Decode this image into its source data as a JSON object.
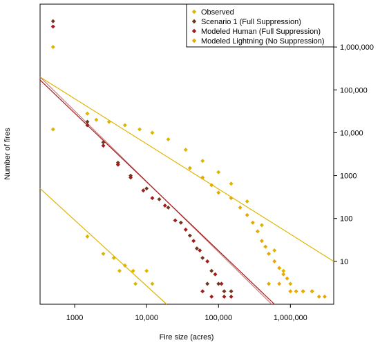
{
  "chart_data": {
    "type": "scatter",
    "title": "",
    "xlabel": "Fire size (acres)",
    "ylabel": "Number of fires",
    "x_scale": "log",
    "y_scale": "log",
    "xlim": [
      330,
      4000000
    ],
    "ylim": [
      1,
      10000000
    ],
    "x_ticks": [
      {
        "value": 1000,
        "label": "1000"
      },
      {
        "value": 10000,
        "label": "10,000"
      },
      {
        "value": 100000,
        "label": "100,000"
      },
      {
        "value": 1000000,
        "label": "1,000,000"
      }
    ],
    "y_ticks": [
      {
        "value": 10,
        "label": "10"
      },
      {
        "value": 100,
        "label": "100"
      },
      {
        "value": 1000,
        "label": "1000"
      },
      {
        "value": 10000,
        "label": "10,000"
      },
      {
        "value": 100000,
        "label": "100,000"
      },
      {
        "value": 1000000,
        "label": "1,000,000"
      }
    ],
    "y_axis_side": "right",
    "grid": false,
    "legend": {
      "placement": "top-right",
      "entries": [
        {
          "label": "Observed",
          "color": "#DAB600"
        },
        {
          "label": "Scenario 1 (Full Suppression)",
          "color": "#6B3A1E"
        },
        {
          "label": "Modeled Human (Full Suppression)",
          "color": "#A11C1C"
        },
        {
          "label": "Modeled Lightning (No Suppression)",
          "color": "#E8A800"
        }
      ]
    },
    "series": [
      {
        "name": "Observed",
        "color": "#DAB600",
        "kind": "points",
        "points": [
          [
            500,
            1000000
          ],
          [
            500,
            12000
          ],
          [
            1500,
            38
          ],
          [
            2500,
            15
          ],
          [
            3500,
            12
          ],
          [
            5000,
            8
          ],
          [
            6500,
            6
          ],
          [
            4200,
            6
          ],
          [
            7000,
            3
          ],
          [
            12000,
            3
          ],
          [
            10000,
            6
          ],
          [
            1500,
            28000
          ],
          [
            2000,
            20000
          ],
          [
            3000,
            18000
          ],
          [
            5000,
            15000
          ],
          [
            8000,
            12000
          ],
          [
            12000,
            10000
          ],
          [
            20000,
            7000
          ],
          [
            35000,
            4000
          ],
          [
            60000,
            2200
          ],
          [
            100000,
            1200
          ],
          [
            150000,
            650
          ],
          [
            250000,
            250
          ],
          [
            400000,
            70
          ],
          [
            600000,
            18
          ],
          [
            800000,
            6
          ],
          [
            1000000,
            3
          ],
          [
            1500000,
            2
          ],
          [
            2000000,
            2
          ]
        ]
      },
      {
        "name": "Scenario 1 (Full Suppression)",
        "color": "#6B3A1E",
        "kind": "points",
        "points": [
          [
            500,
            4000000
          ],
          [
            1500,
            18000
          ],
          [
            2500,
            6000
          ],
          [
            4000,
            2000
          ],
          [
            6000,
            1000
          ],
          [
            10000,
            500
          ],
          [
            15000,
            280
          ],
          [
            20000,
            180
          ],
          [
            30000,
            80
          ],
          [
            40000,
            40
          ],
          [
            50000,
            20
          ],
          [
            60000,
            12
          ],
          [
            80000,
            6
          ],
          [
            100000,
            3
          ],
          [
            70000,
            3
          ],
          [
            120000,
            2
          ],
          [
            150000,
            2
          ]
        ]
      },
      {
        "name": "Modeled Human (Full Suppression)",
        "color": "#A11C1C",
        "kind": "points",
        "points": [
          [
            500,
            3000000
          ],
          [
            1500,
            15000
          ],
          [
            2500,
            5000
          ],
          [
            4000,
            1800
          ],
          [
            6000,
            900
          ],
          [
            9000,
            450
          ],
          [
            12000,
            300
          ],
          [
            18000,
            200
          ],
          [
            25000,
            90
          ],
          [
            35000,
            55
          ],
          [
            45000,
            30
          ],
          [
            55000,
            18
          ],
          [
            70000,
            10
          ],
          [
            90000,
            5
          ],
          [
            110000,
            3
          ],
          [
            60000,
            2
          ],
          [
            80000,
            1.5
          ],
          [
            120000,
            1.5
          ],
          [
            150000,
            1.5
          ]
        ]
      },
      {
        "name": "Modeled Lightning (No Suppression)",
        "color": "#E8A800",
        "kind": "points",
        "points": [
          [
            40000,
            1500
          ],
          [
            60000,
            900
          ],
          [
            80000,
            600
          ],
          [
            100000,
            400
          ],
          [
            150000,
            300
          ],
          [
            200000,
            180
          ],
          [
            250000,
            120
          ],
          [
            300000,
            80
          ],
          [
            350000,
            50
          ],
          [
            400000,
            30
          ],
          [
            450000,
            22
          ],
          [
            500000,
            15
          ],
          [
            600000,
            10
          ],
          [
            700000,
            7
          ],
          [
            800000,
            5
          ],
          [
            900000,
            4
          ],
          [
            500000,
            3
          ],
          [
            700000,
            3
          ],
          [
            1000000,
            2
          ],
          [
            1200000,
            2
          ],
          [
            1500000,
            2
          ],
          [
            2000000,
            2
          ],
          [
            2500000,
            1.5
          ],
          [
            3000000,
            1.5
          ]
        ]
      }
    ],
    "fit_lines": [
      {
        "color": "#E0B400",
        "from": [
          330,
          200000
        ],
        "to": [
          4000000,
          10
        ]
      },
      {
        "color": "#C98080",
        "from": [
          330,
          200000
        ],
        "to": [
          550000,
          1
        ]
      },
      {
        "color": "#A11C1C",
        "from": [
          330,
          170000
        ],
        "to": [
          600000,
          1
        ]
      },
      {
        "color": "#E0B400",
        "from": [
          330,
          500
        ],
        "to": [
          19000,
          1
        ]
      }
    ]
  }
}
